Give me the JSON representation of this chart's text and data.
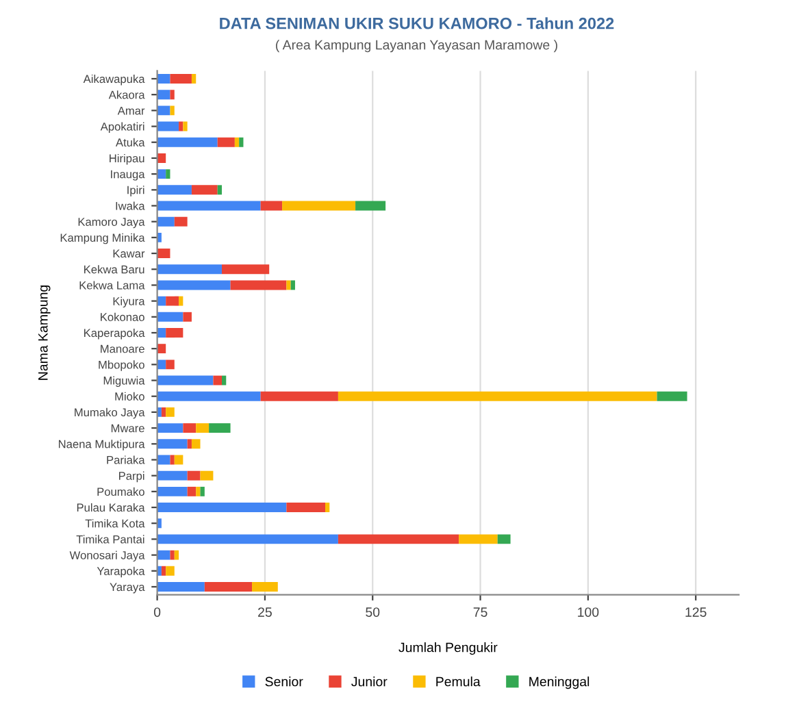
{
  "chart_data": {
    "type": "bar",
    "orientation": "horizontal",
    "stacked": true,
    "title": "DATA SENIMAN UKIR SUKU KAMORO - Tahun 2022",
    "subtitle": "( Area Kampung Layanan Yayasan Maramowe )",
    "xlabel": "Jumlah Pengukir",
    "ylabel": "Nama Kampung",
    "categories": [
      "Aikawapuka",
      "Akaora",
      "Amar",
      "Apokatiri",
      "Atuka",
      "Hiripau",
      "Inauga",
      "Ipiri",
      "Iwaka",
      "Kamoro Jaya",
      "Kampung Minika",
      "Kawar",
      "Kekwa Baru",
      "Kekwa Lama",
      "Kiyura",
      "Kokonao",
      "Kaperapoka",
      "Manoare",
      "Mbopoko",
      "Miguwia",
      "Mioko",
      "Mumako Jaya",
      "Mware",
      "Naena Muktipura",
      "Pariaka",
      "Parpi",
      "Poumako",
      "Pulau Karaka",
      "Timika Kota",
      "Timika Pantai",
      "Wonosari Jaya",
      "Yarapoka",
      "Yaraya"
    ],
    "series": [
      {
        "name": "Senior",
        "color": "#4285f4",
        "values": [
          3,
          3,
          3,
          5,
          14,
          0,
          2,
          8,
          24,
          4,
          1,
          0,
          15,
          17,
          2,
          6,
          2,
          0,
          2,
          13,
          24,
          1,
          6,
          7,
          3,
          7,
          7,
          30,
          1,
          42,
          3,
          1,
          11
        ]
      },
      {
        "name": "Junior",
        "color": "#ea4335",
        "values": [
          5,
          1,
          0,
          1,
          4,
          2,
          0,
          6,
          5,
          3,
          0,
          3,
          11,
          13,
          3,
          2,
          4,
          2,
          2,
          2,
          18,
          1,
          3,
          1,
          1,
          3,
          2,
          9,
          0,
          28,
          1,
          1,
          11
        ]
      },
      {
        "name": "Pemula",
        "color": "#fbbc04",
        "values": [
          1,
          0,
          1,
          1,
          1,
          0,
          0,
          0,
          17,
          0,
          0,
          0,
          0,
          1,
          1,
          0,
          0,
          0,
          0,
          0,
          74,
          2,
          3,
          2,
          2,
          3,
          1,
          1,
          0,
          9,
          1,
          2,
          6
        ]
      },
      {
        "name": "Meninggal",
        "color": "#34a853",
        "values": [
          0,
          0,
          0,
          0,
          1,
          0,
          1,
          1,
          7,
          0,
          0,
          0,
          0,
          1,
          0,
          0,
          0,
          0,
          0,
          1,
          7,
          0,
          5,
          0,
          0,
          0,
          1,
          0,
          0,
          3,
          0,
          0,
          0
        ]
      }
    ],
    "xlim": [
      0,
      135
    ],
    "xticks": [
      0,
      25,
      50,
      75,
      100,
      125
    ],
    "grid": "x",
    "legend": "bottom"
  }
}
